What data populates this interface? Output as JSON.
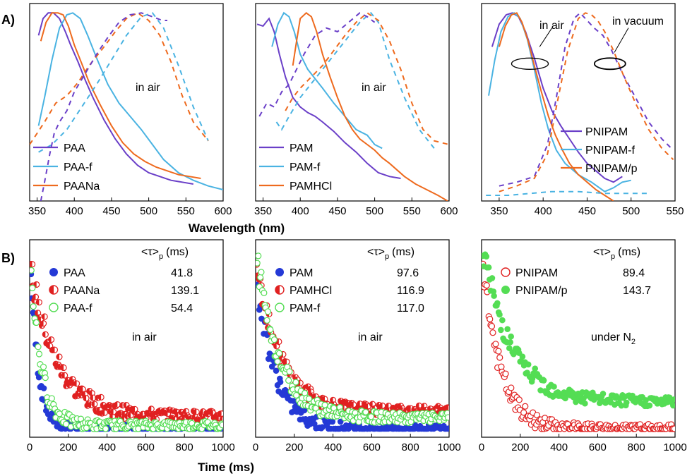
{
  "panel_labels": {
    "a": "A)",
    "b": "B)"
  },
  "colors": {
    "purple": "#6a3fc8",
    "cyan": "#4ab3e2",
    "orange": "#ee6a1e",
    "blue": "#2439d6",
    "red": "#e02020",
    "green": "#54dd54"
  },
  "chart_data": [
    {
      "type": "line",
      "panel": "A1",
      "xlabel": "Wavelength (nm)",
      "xlim": [
        340,
        600
      ],
      "xticks": [
        350,
        400,
        450,
        500,
        550,
        600
      ],
      "ylim": [
        0,
        1.05
      ],
      "annotation": "in air",
      "legend": {
        "placement": "bottom-left",
        "entries": [
          "PAA",
          "PAA-f",
          "PAANa"
        ]
      },
      "series": [
        {
          "name": "PAA",
          "style": "solid",
          "color": "purple",
          "x": [
            352,
            358,
            365,
            372,
            380,
            388,
            395,
            405,
            415,
            425,
            440,
            455,
            470,
            485,
            500,
            515,
            530,
            545,
            560
          ],
          "y": [
            0.88,
            0.97,
            1.0,
            1.0,
            0.97,
            0.9,
            0.83,
            0.74,
            0.64,
            0.55,
            0.43,
            0.33,
            0.25,
            0.19,
            0.15,
            0.13,
            0.11,
            0.1,
            0.09
          ]
        },
        {
          "name": "PAA-f",
          "style": "solid",
          "color": "cyan",
          "x": [
            352,
            360,
            370,
            380,
            390,
            398,
            408,
            418,
            430,
            445,
            460,
            475,
            490,
            505,
            520,
            540,
            560,
            580,
            600
          ],
          "y": [
            0.4,
            0.55,
            0.75,
            0.92,
            0.99,
            1.0,
            0.97,
            0.88,
            0.76,
            0.62,
            0.52,
            0.45,
            0.38,
            0.3,
            0.22,
            0.15,
            0.11,
            0.08,
            0.06
          ]
        },
        {
          "name": "PAANa",
          "style": "solid",
          "color": "orange",
          "x": [
            355,
            362,
            370,
            378,
            385,
            392,
            400,
            410,
            420,
            435,
            450,
            465,
            480,
            495,
            510,
            525,
            540,
            555,
            570
          ],
          "y": [
            0.85,
            0.95,
            1.0,
            1.0,
            0.99,
            0.93,
            0.83,
            0.73,
            0.63,
            0.51,
            0.4,
            0.31,
            0.25,
            0.21,
            0.18,
            0.16,
            0.14,
            0.13,
            0.12
          ]
        },
        {
          "name": "PAA-f excitation",
          "style": "dashed",
          "color": "cyan",
          "x": [
            352,
            370,
            390,
            410,
            430,
            450,
            470,
            490,
            505,
            520,
            540,
            560,
            580
          ],
          "y": [
            0.26,
            0.3,
            0.38,
            0.5,
            0.62,
            0.75,
            0.88,
            0.98,
            1.0,
            0.92,
            0.72,
            0.5,
            0.32
          ]
        },
        {
          "name": "PAANa excitation",
          "style": "dashed",
          "color": "orange",
          "x": [
            340,
            360,
            375,
            390,
            405,
            420,
            440,
            455,
            470,
            485,
            500,
            515,
            530,
            545,
            560,
            580
          ],
          "y": [
            0.3,
            0.42,
            0.52,
            0.56,
            0.63,
            0.72,
            0.82,
            0.9,
            0.97,
            1.0,
            0.96,
            0.88,
            0.74,
            0.56,
            0.42,
            0.32
          ]
        },
        {
          "name": "PAA excitation",
          "style": "dashed",
          "color": "purple",
          "x": [
            355,
            360,
            367,
            373,
            380,
            390,
            400,
            415,
            430,
            445,
            460,
            475,
            490,
            505,
            518,
            525
          ],
          "y": [
            0.0,
            0.1,
            0.25,
            0.36,
            0.42,
            0.48,
            0.58,
            0.68,
            0.78,
            0.87,
            0.95,
            0.99,
            1.0,
            0.98,
            0.96,
            0.96
          ]
        }
      ]
    },
    {
      "type": "line",
      "panel": "A2",
      "xlabel": "Wavelength (nm)",
      "xlim": [
        340,
        600
      ],
      "xticks": [
        350,
        400,
        450,
        500,
        550,
        600
      ],
      "ylim": [
        0,
        1.05
      ],
      "annotation": "in air",
      "legend": {
        "placement": "bottom-left",
        "entries": [
          "PAM",
          "PAM-f",
          "PAMHCl"
        ]
      },
      "series": [
        {
          "name": "PAM",
          "style": "solid",
          "color": "purple",
          "x": [
            342,
            350,
            358,
            365,
            372,
            380,
            390,
            400,
            410,
            420,
            430,
            445,
            460,
            475,
            490,
            505,
            520,
            535
          ],
          "y": [
            0.94,
            0.93,
            0.97,
            0.9,
            0.78,
            0.66,
            0.55,
            0.5,
            0.47,
            0.45,
            0.42,
            0.37,
            0.31,
            0.26,
            0.2,
            0.15,
            0.13,
            0.12
          ]
        },
        {
          "name": "PAM-f",
          "style": "solid",
          "color": "cyan",
          "x": [
            362,
            370,
            378,
            385,
            392,
            400,
            410,
            420,
            430,
            445,
            460,
            475,
            490,
            500,
            510
          ],
          "y": [
            0.82,
            0.94,
            1.0,
            0.98,
            0.9,
            0.78,
            0.7,
            0.65,
            0.6,
            0.52,
            0.45,
            0.38,
            0.35,
            0.3,
            0.28
          ]
        },
        {
          "name": "PAMHCl",
          "style": "solid",
          "color": "orange",
          "x": [
            390,
            395,
            400,
            408,
            415,
            422,
            430,
            440,
            450,
            460,
            470,
            480,
            490,
            500,
            510,
            520,
            540,
            555,
            570,
            585,
            598
          ],
          "y": [
            0.72,
            0.85,
            0.97,
            1.0,
            0.98,
            0.9,
            0.78,
            0.66,
            0.55,
            0.45,
            0.38,
            0.33,
            0.3,
            0.27,
            0.23,
            0.2,
            0.13,
            0.09,
            0.06,
            0.03,
            0.0
          ]
        },
        {
          "name": "PAM-f excitation",
          "style": "dashed",
          "color": "cyan",
          "x": [
            368,
            375,
            385,
            400,
            420,
            440,
            460,
            480,
            495,
            505,
            520,
            540,
            560,
            580
          ],
          "y": [
            0.42,
            0.38,
            0.45,
            0.55,
            0.65,
            0.75,
            0.85,
            0.95,
            1.0,
            0.95,
            0.75,
            0.55,
            0.38,
            0.28
          ]
        },
        {
          "name": "PAMHCl excitation",
          "style": "dashed",
          "color": "orange",
          "x": [
            380,
            390,
            400,
            415,
            430,
            445,
            460,
            475,
            490,
            505,
            520,
            535,
            550,
            565,
            580,
            600
          ],
          "y": [
            0.48,
            0.55,
            0.6,
            0.66,
            0.72,
            0.8,
            0.88,
            0.95,
            1.0,
            0.96,
            0.85,
            0.7,
            0.52,
            0.38,
            0.32,
            0.3
          ]
        },
        {
          "name": "PAM excitation",
          "style": "dashed",
          "color": "purple",
          "x": [
            345,
            355,
            365,
            375,
            385,
            395,
            405,
            420,
            435,
            450,
            465,
            480,
            490,
            500
          ],
          "y": [
            0.45,
            0.52,
            0.5,
            0.58,
            0.62,
            0.7,
            0.78,
            0.88,
            0.92,
            0.9,
            0.95,
            1.0,
            0.98,
            0.95
          ]
        }
      ]
    },
    {
      "type": "line",
      "panel": "A3",
      "xlabel": "Wavelength (nm)",
      "xlim": [
        330,
        550
      ],
      "xticks": [
        350,
        400,
        450,
        500,
        550
      ],
      "ylim": [
        0,
        1.05
      ],
      "annotations": [
        "in air",
        "in vacuum"
      ],
      "legend": {
        "placement": "bottom-right",
        "entries": [
          "PNIPAM",
          "PNIPAM-f",
          "PNIPAM/p"
        ]
      },
      "series": [
        {
          "name": "PNIPAM",
          "style": "solid",
          "color": "purple",
          "x": [
            342,
            350,
            358,
            365,
            372,
            380,
            390,
            400,
            410,
            420,
            430,
            440,
            450,
            460,
            470,
            480,
            490
          ],
          "y": [
            0.82,
            0.94,
            0.99,
            1.0,
            0.98,
            0.9,
            0.76,
            0.6,
            0.48,
            0.4,
            0.33,
            0.26,
            0.2,
            0.16,
            0.12,
            0.1,
            0.13
          ]
        },
        {
          "name": "PNIPAM-f",
          "style": "solid",
          "color": "cyan",
          "x": [
            338,
            345,
            352,
            360,
            367,
            374,
            382,
            390,
            398,
            406,
            415,
            425,
            440,
            455,
            470,
            480,
            490,
            500
          ],
          "y": [
            0.56,
            0.75,
            0.9,
            0.98,
            1.0,
            0.97,
            0.86,
            0.7,
            0.52,
            0.38,
            0.27,
            0.2,
            0.14,
            0.1,
            0.05,
            0.07,
            0.1,
            0.11
          ]
        },
        {
          "name": "PNIPAM/p",
          "style": "solid",
          "color": "orange",
          "x": [
            350,
            357,
            364,
            370,
            376,
            383,
            390,
            398,
            406,
            414,
            422,
            430,
            440,
            450,
            460,
            470,
            480
          ],
          "y": [
            0.82,
            0.93,
            0.99,
            1.0,
            0.95,
            0.85,
            0.72,
            0.58,
            0.45,
            0.35,
            0.27,
            0.2,
            0.14,
            0.1,
            0.06,
            0.03,
            0.0
          ]
        },
        {
          "name": "in vacuum excitation 1",
          "style": "dashed",
          "color": "purple",
          "x": [
            350,
            370,
            390,
            405,
            415,
            425,
            435,
            442,
            450,
            458,
            468,
            478,
            490,
            505,
            520,
            535,
            548
          ],
          "y": [
            0.08,
            0.1,
            0.13,
            0.3,
            0.55,
            0.82,
            0.97,
            1.0,
            0.96,
            0.92,
            0.88,
            0.8,
            0.68,
            0.55,
            0.42,
            0.33,
            0.27
          ]
        },
        {
          "name": "in vacuum excitation 2",
          "style": "dashed",
          "color": "orange",
          "x": [
            350,
            370,
            390,
            405,
            415,
            428,
            440,
            448,
            455,
            462,
            470,
            480,
            492,
            505,
            520,
            535,
            548
          ],
          "y": [
            0.05,
            0.08,
            0.12,
            0.25,
            0.5,
            0.8,
            0.97,
            1.0,
            0.99,
            0.96,
            0.9,
            0.8,
            0.66,
            0.52,
            0.38,
            0.28,
            0.22
          ]
        },
        {
          "name": "in vacuum excitation 3",
          "style": "dashed",
          "color": "cyan",
          "x": [
            335,
            360,
            385,
            410,
            440,
            470,
            500,
            520
          ],
          "y": [
            0.03,
            0.03,
            0.04,
            0.05,
            0.05,
            0.04,
            0.04,
            0.04
          ]
        }
      ]
    },
    {
      "type": "scatter",
      "panel": "B1",
      "xlabel": "Time (ms)",
      "xlim": [
        0,
        1000
      ],
      "xticks": [
        0,
        200,
        400,
        600,
        800,
        1000
      ],
      "annotation": "in air",
      "legend": {
        "placement": "top-right",
        "header": {
          "main": "<τ>",
          "sub": "p",
          "unit": "(ms)"
        },
        "entries": [
          {
            "name": "PAA",
            "value": "41.8",
            "marker": "filled",
            "color": "blue"
          },
          {
            "name": "PAANa",
            "value": "139.1",
            "marker": "half",
            "color": "red"
          },
          {
            "name": "PAA-f",
            "value": "54.4",
            "marker": "open",
            "color": "green"
          }
        ]
      },
      "series": [
        {
          "name": "PAA",
          "tau": 41.8,
          "amp": 1.0,
          "floor": 0.0
        },
        {
          "name": "PAANa",
          "tau": 139.1,
          "amp": 0.85,
          "floor": 0.07
        },
        {
          "name": "PAA-f",
          "tau": 54.4,
          "amp": 1.0,
          "floor": 0.02
        }
      ]
    },
    {
      "type": "scatter",
      "panel": "B2",
      "xlabel": "Time (ms)",
      "xlim": [
        0,
        1000
      ],
      "xticks": [
        0,
        200,
        400,
        600,
        800,
        1000
      ],
      "annotation": "in air",
      "legend": {
        "placement": "top-right",
        "header": {
          "main": "<τ>",
          "sub": "p",
          "unit": "(ms)"
        },
        "entries": [
          {
            "name": "PAM",
            "value": "97.6",
            "marker": "filled",
            "color": "blue"
          },
          {
            "name": "PAMHCl",
            "value": "116.9",
            "marker": "half",
            "color": "red"
          },
          {
            "name": "PAM-f",
            "value": "117.0",
            "marker": "open",
            "color": "green"
          }
        ]
      },
      "series": [
        {
          "name": "PAM",
          "tau": 97.6,
          "amp": 0.9,
          "floor": 0.0
        },
        {
          "name": "PAMHCl",
          "tau": 116.9,
          "amp": 0.9,
          "floor": 0.1
        },
        {
          "name": "PAM-f",
          "tau": 117.0,
          "amp": 0.95,
          "floor": 0.06
        }
      ]
    },
    {
      "type": "scatter",
      "panel": "B3",
      "xlabel": "Time (ms)",
      "xlim": [
        0,
        1000
      ],
      "xticks": [
        0,
        200,
        400,
        600,
        800,
        1000
      ],
      "annotation": {
        "main": "under N",
        "sub": "2"
      },
      "legend": {
        "placement": "top-right",
        "header": {
          "main": "<τ>",
          "sub": "p",
          "unit": "(ms)"
        },
        "entries": [
          {
            "name": "PNIPAM",
            "value": "89.4",
            "marker": "open",
            "color": "red"
          },
          {
            "name": "PNIPAM/p",
            "value": "143.7",
            "marker": "filled",
            "color": "green"
          }
        ]
      },
      "series": [
        {
          "name": "PNIPAM",
          "tau": 89.4,
          "amp": 1.0,
          "floor": 0.0
        },
        {
          "name": "PNIPAM/p",
          "tau": 143.7,
          "amp": 0.9,
          "floor": 0.15
        }
      ]
    }
  ],
  "xlabels": {
    "top": "Wavelength (nm)",
    "bottom": "Time (ms)"
  }
}
